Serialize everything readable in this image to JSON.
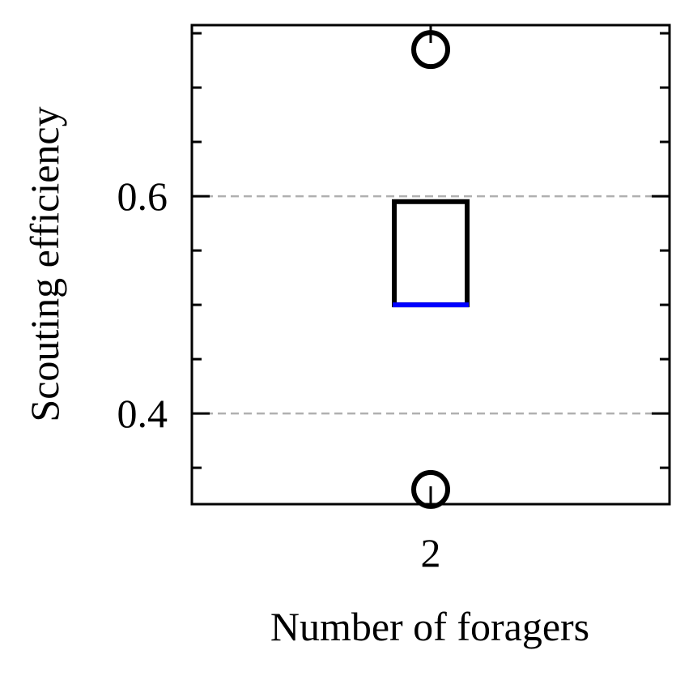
{
  "chart_data": {
    "type": "box",
    "title": "",
    "xlabel": "Number of foragers",
    "ylabel": "Scouting efficiency",
    "categories": [
      "2"
    ],
    "ylim": [
      0.3165,
      0.7575
    ],
    "yticks_major": [
      0.4,
      0.6
    ],
    "ytick_labels": [
      "0.4",
      "0.6"
    ],
    "yticks_minor": [
      0.35,
      0.45,
      0.5,
      0.55,
      0.65,
      0.7,
      0.75
    ],
    "boxes": [
      {
        "category": "2",
        "q1": 0.5,
        "median": 0.5,
        "q3": 0.595,
        "whisker_low": 0.5,
        "whisker_high": 0.595,
        "outliers": [
          0.33,
          0.735
        ]
      }
    ],
    "grid": "horizontal-dashed",
    "colors": {
      "box": "#000000",
      "median": "#0000ff",
      "grid": "#b0b0b0",
      "outlier": "#000000"
    }
  }
}
